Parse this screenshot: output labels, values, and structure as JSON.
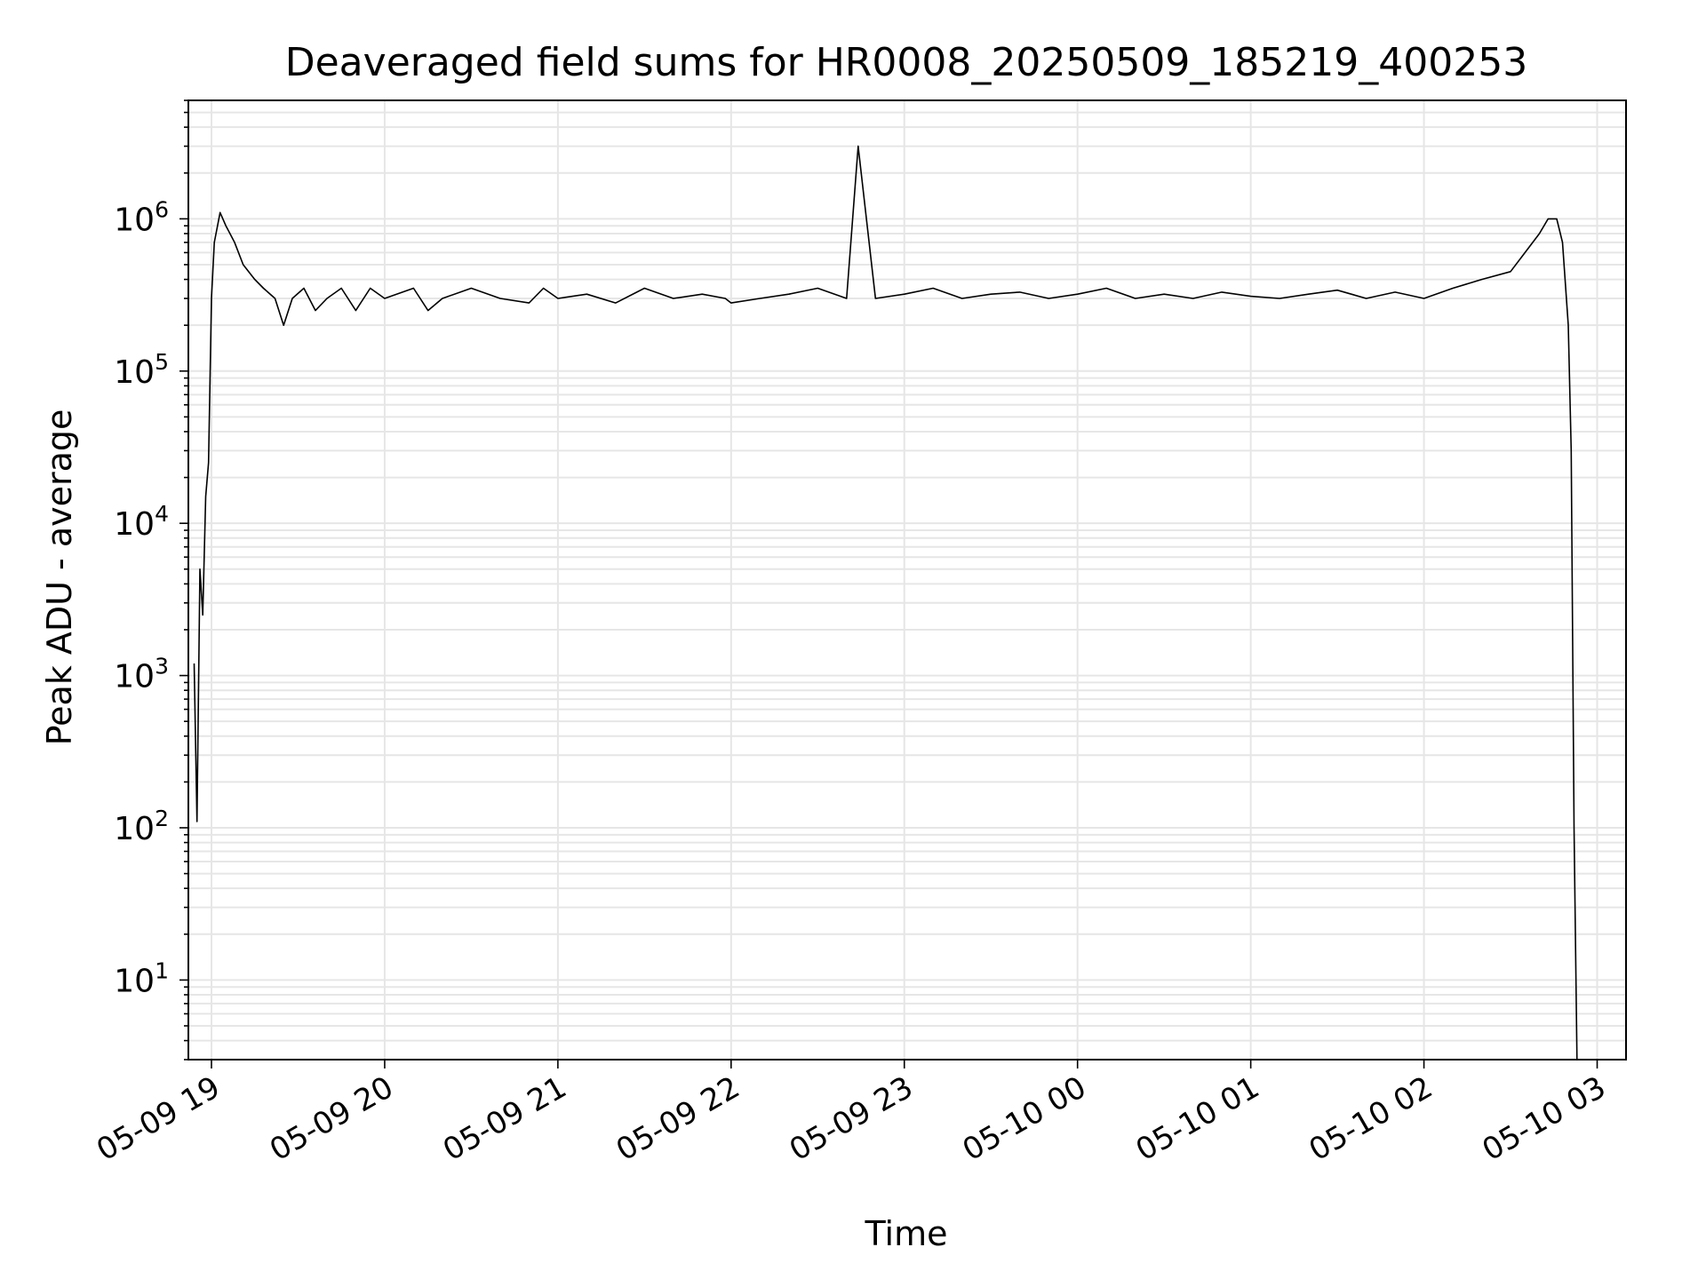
{
  "chart_data": {
    "type": "line",
    "title": "Deaveraged field sums for HR0008_20250509_185219_400253",
    "xlabel": "Time",
    "ylabel": "Peak ADU - average",
    "yscale": "log",
    "ylim": [
      3.0,
      6000000
    ],
    "xlim": [
      "2025-05-09 18:52",
      "2025-05-10 03:10"
    ],
    "x_ticks": [
      "05-09 19",
      "05-09 20",
      "05-09 21",
      "05-09 22",
      "05-09 23",
      "05-10 00",
      "05-10 01",
      "05-10 02",
      "05-10 03"
    ],
    "y_ticks": [
      10,
      100,
      1000,
      10000,
      100000,
      1000000
    ],
    "y_tick_labels": [
      {
        "base": "10",
        "exp": "1"
      },
      {
        "base": "10",
        "exp": "2"
      },
      {
        "base": "10",
        "exp": "3"
      },
      {
        "base": "10",
        "exp": "4"
      },
      {
        "base": "10",
        "exp": "5"
      },
      {
        "base": "10",
        "exp": "6"
      }
    ],
    "grid": true,
    "line_color": "#000000",
    "grid_color": "#e6e6e6",
    "series": [
      {
        "x": [
          "2025-05-09 18:54",
          "2025-05-09 18:55",
          "2025-05-09 18:56",
          "2025-05-09 18:57",
          "2025-05-09 18:58",
          "2025-05-09 18:59",
          "2025-05-09 19:00",
          "2025-05-09 19:01",
          "2025-05-09 19:03",
          "2025-05-09 19:05",
          "2025-05-09 19:08",
          "2025-05-09 19:11",
          "2025-05-09 19:15",
          "2025-05-09 19:18",
          "2025-05-09 19:22",
          "2025-05-09 19:25",
          "2025-05-09 19:28",
          "2025-05-09 19:32",
          "2025-05-09 19:36",
          "2025-05-09 19:40",
          "2025-05-09 19:45",
          "2025-05-09 19:50",
          "2025-05-09 19:55",
          "2025-05-09 20:00",
          "2025-05-09 20:10",
          "2025-05-09 20:15",
          "2025-05-09 20:20",
          "2025-05-09 20:30",
          "2025-05-09 20:40",
          "2025-05-09 20:50",
          "2025-05-09 20:55",
          "2025-05-09 21:00",
          "2025-05-09 21:10",
          "2025-05-09 21:20",
          "2025-05-09 21:30",
          "2025-05-09 21:40",
          "2025-05-09 21:50",
          "2025-05-09 21:58",
          "2025-05-09 22:00",
          "2025-05-09 22:10",
          "2025-05-09 22:20",
          "2025-05-09 22:30",
          "2025-05-09 22:40",
          "2025-05-09 22:44",
          "2025-05-09 22:50",
          "2025-05-09 23:00",
          "2025-05-09 23:10",
          "2025-05-09 23:20",
          "2025-05-09 23:30",
          "2025-05-09 23:40",
          "2025-05-09 23:50",
          "2025-05-10 00:00",
          "2025-05-10 00:10",
          "2025-05-10 00:20",
          "2025-05-10 00:30",
          "2025-05-10 00:40",
          "2025-05-10 00:50",
          "2025-05-10 01:00",
          "2025-05-10 01:10",
          "2025-05-10 01:20",
          "2025-05-10 01:30",
          "2025-05-10 01:40",
          "2025-05-10 01:50",
          "2025-05-10 02:00",
          "2025-05-10 02:10",
          "2025-05-10 02:20",
          "2025-05-10 02:30",
          "2025-05-10 02:35",
          "2025-05-10 02:40",
          "2025-05-10 02:43",
          "2025-05-10 02:46",
          "2025-05-10 02:48",
          "2025-05-10 02:50",
          "2025-05-10 02:51",
          "2025-05-10 02:52",
          "2025-05-10 02:53"
        ],
        "y": [
          1200,
          110,
          5000,
          2500,
          15000,
          25000,
          300000,
          700000,
          1100000,
          900000,
          700000,
          500000,
          400000,
          350000,
          300000,
          200000,
          300000,
          350000,
          250000,
          300000,
          350000,
          250000,
          350000,
          300000,
          350000,
          250000,
          300000,
          350000,
          300000,
          280000,
          350000,
          300000,
          320000,
          280000,
          350000,
          300000,
          320000,
          300000,
          280000,
          300000,
          320000,
          350000,
          300000,
          3000000,
          300000,
          320000,
          350000,
          300000,
          320000,
          330000,
          300000,
          320000,
          350000,
          300000,
          320000,
          300000,
          330000,
          310000,
          300000,
          320000,
          340000,
          300000,
          330000,
          300000,
          350000,
          400000,
          450000,
          600000,
          800000,
          1000000,
          1000000,
          700000,
          200000,
          30000,
          100,
          3
        ]
      }
    ]
  }
}
